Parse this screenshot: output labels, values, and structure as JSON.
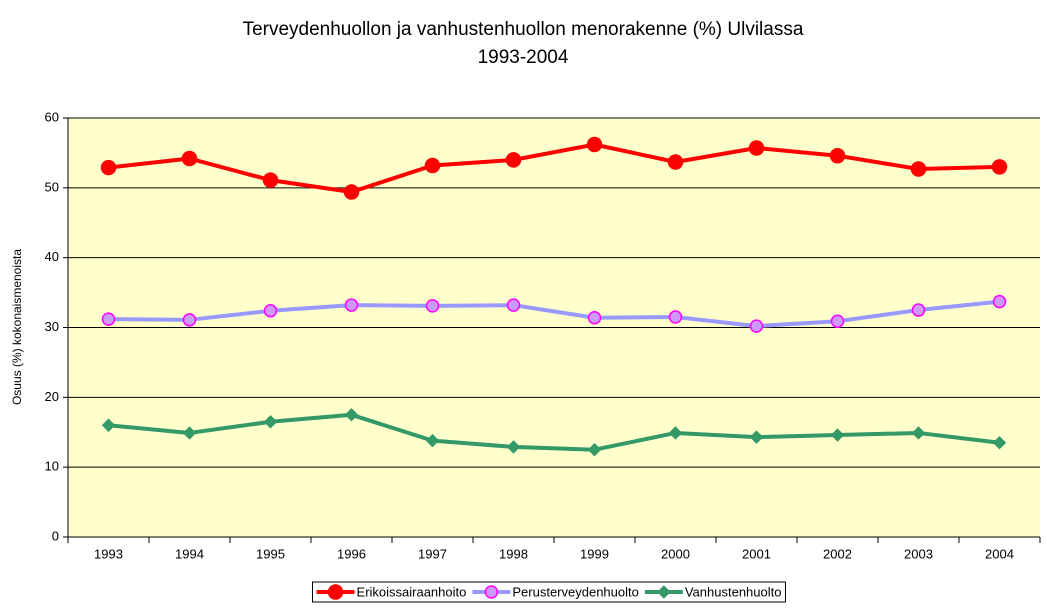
{
  "chart_data": {
    "type": "line",
    "title": [
      "Terveydenhuollon ja vanhustenhuollon menorakenne (%) Ulvilassa",
      "1993-2004"
    ],
    "y_label": "Osuus (%) kokonaismenoista",
    "categories": [
      "1993",
      "1994",
      "1995",
      "1996",
      "1997",
      "1998",
      "1999",
      "2000",
      "2001",
      "2002",
      "2003",
      "2004"
    ],
    "series": [
      {
        "name": "Erikoissairaanhoito",
        "color": "#ff0000",
        "marker": "circle",
        "marker_fill": "#ff0000",
        "marker_stroke": "#ff0000",
        "values": [
          52.9,
          54.2,
          51.1,
          49.4,
          53.2,
          54.0,
          56.2,
          53.7,
          55.7,
          54.6,
          52.7,
          53.0
        ]
      },
      {
        "name": "Perusterveydenhuolto",
        "color": "#9999ff",
        "marker": "circle",
        "marker_fill": "#cc99ff",
        "marker_stroke": "#ff00ff",
        "values": [
          31.2,
          31.1,
          32.4,
          33.2,
          33.1,
          33.2,
          31.4,
          31.5,
          30.2,
          30.9,
          32.5,
          33.7
        ]
      },
      {
        "name": "Vanhustenhuolto",
        "color": "#339966",
        "marker": "diamond",
        "marker_fill": "#339966",
        "marker_stroke": "#339966",
        "values": [
          16.0,
          14.9,
          16.5,
          17.5,
          13.8,
          12.9,
          12.5,
          14.9,
          14.3,
          14.6,
          14.9,
          13.5
        ]
      }
    ],
    "ylim": [
      0,
      60
    ],
    "yticks": [
      0,
      10,
      20,
      30,
      40,
      50,
      60
    ],
    "grid": true,
    "plot_background": "#ffffcc",
    "legend": "bottom"
  }
}
